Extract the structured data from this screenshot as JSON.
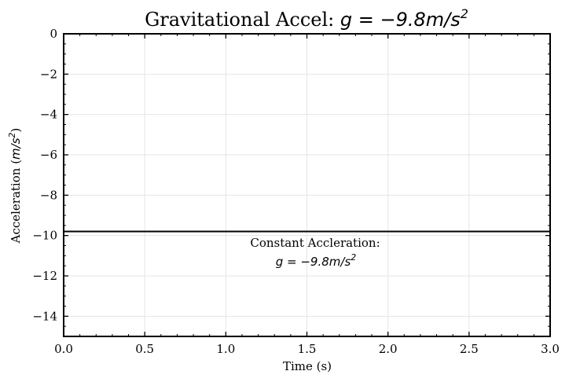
{
  "chart_data": {
    "type": "line",
    "title": {
      "prefix": "Gravitational Accel: ",
      "math": "g = −9.8m/s",
      "math_sup": "2"
    },
    "xlabel": "Time (s)",
    "ylabel": {
      "text": "Acceleration (",
      "math": "m/s",
      "math_sup": "2",
      "suffix": ")"
    },
    "xlim": [
      0,
      3
    ],
    "ylim": [
      -15,
      0
    ],
    "x_ticks": [
      0.0,
      0.5,
      1.0,
      1.5,
      2.0,
      2.5,
      3.0
    ],
    "x_tick_labels": [
      "0.0",
      "0.5",
      "1.0",
      "1.5",
      "2.0",
      "2.5",
      "3.0"
    ],
    "y_ticks": [
      0,
      -2,
      -4,
      -6,
      -8,
      -10,
      -12,
      -14
    ],
    "y_tick_labels": [
      "0",
      "−2",
      "−4",
      "−6",
      "−8",
      "−10",
      "−12",
      "−14"
    ],
    "grid": true,
    "series": [
      {
        "x": [
          0,
          3
        ],
        "y": [
          -9.8,
          -9.8
        ],
        "color": "#000000"
      }
    ],
    "annotation": {
      "line1": "Constant Accleration:",
      "line2_math": "g = −9.8m/s",
      "line2_sup": "2",
      "x": 1.5,
      "y": -10.5
    }
  }
}
